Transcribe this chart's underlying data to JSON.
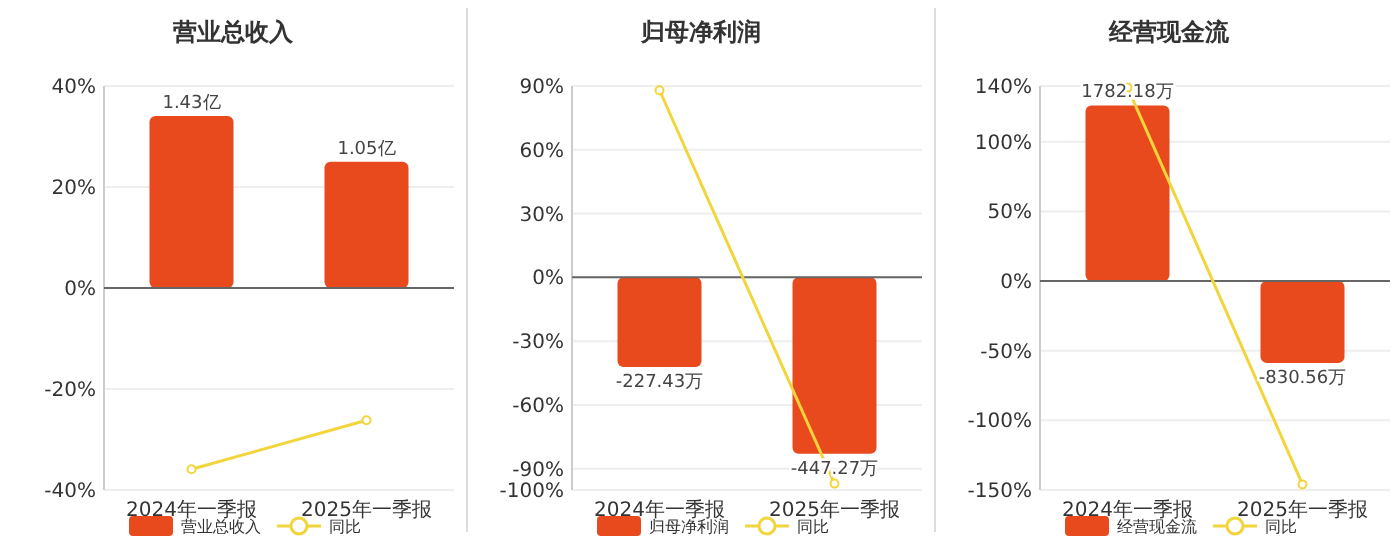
{
  "chart_data": [
    {
      "type": "bar",
      "title": "营业总收入",
      "categories": [
        "2024年一季报",
        "2025年一季报"
      ],
      "ylim": [
        -40,
        40
      ],
      "yticks": [
        {
          "value": -40,
          "label": "-40%"
        },
        {
          "value": -20,
          "label": "-20%"
        },
        {
          "value": 0,
          "label": "0%"
        },
        {
          "value": 20,
          "label": "20%"
        },
        {
          "value": 40,
          "label": "40%"
        }
      ],
      "y2lim": [
        -1.68,
        1.68
      ],
      "tick_labels": "y",
      "grid": "y",
      "legend": "bottom",
      "marker": "circle",
      "series": [
        {
          "name": "营业总收入",
          "axis": "y2",
          "color": "#e8491d",
          "values": [
            1.43,
            1.05
          ],
          "value_labels": [
            "1.43亿",
            "1.05亿"
          ]
        },
        {
          "name": "同比",
          "type": "line",
          "color": "#f2d53c",
          "values": [
            -35.9,
            -26.2
          ]
        }
      ]
    },
    {
      "type": "bar",
      "title": "归母净利润",
      "categories": [
        "2024年一季报",
        "2025年一季报"
      ],
      "ylim": [
        -100,
        90
      ],
      "yticks": [
        {
          "value": -100,
          "label": "-100%"
        },
        {
          "value": -90,
          "label": "-90%"
        },
        {
          "value": -60,
          "label": "-60%"
        },
        {
          "value": -30,
          "label": "-30%"
        },
        {
          "value": 0,
          "label": "0%"
        },
        {
          "value": 30,
          "label": "30%"
        },
        {
          "value": 60,
          "label": "60%"
        },
        {
          "value": 90,
          "label": "90%"
        }
      ],
      "y2lim": [
        -539,
        485
      ],
      "tick_labels": "y",
      "grid": "y",
      "legend": "bottom",
      "marker": "circle",
      "series": [
        {
          "name": "归母净利润",
          "axis": "y2",
          "color": "#e8491d",
          "values": [
            -227.43,
            -447.27
          ],
          "value_labels": [
            "-227.43万",
            "-447.27万"
          ]
        },
        {
          "name": "同比",
          "type": "line",
          "color": "#f2d53c",
          "values": [
            88,
            -97
          ]
        }
      ]
    },
    {
      "type": "bar",
      "title": "经营现金流",
      "categories": [
        "2024年一季报",
        "2025年一季报"
      ],
      "ylim": [
        -150,
        140
      ],
      "yticks": [
        {
          "value": -150,
          "label": "-150%"
        },
        {
          "value": -100,
          "label": "-100%"
        },
        {
          "value": -50,
          "label": "-50%"
        },
        {
          "value": 0,
          "label": "0%"
        },
        {
          "value": 50,
          "label": "50%"
        },
        {
          "value": 100,
          "label": "100%"
        },
        {
          "value": 140,
          "label": "140%"
        }
      ],
      "y2lim": [
        -2121,
        1980
      ],
      "tick_labels": "y",
      "grid": "y",
      "legend": "bottom",
      "marker": "circle",
      "series": [
        {
          "name": "经营现金流",
          "axis": "y2",
          "color": "#e8491d",
          "values": [
            1782.18,
            -830.56
          ],
          "value_labels": [
            "1782.18万",
            "-830.56万"
          ]
        },
        {
          "name": "同比",
          "type": "line",
          "color": "#f2d53c",
          "values": [
            139,
            -146
          ]
        }
      ]
    }
  ]
}
